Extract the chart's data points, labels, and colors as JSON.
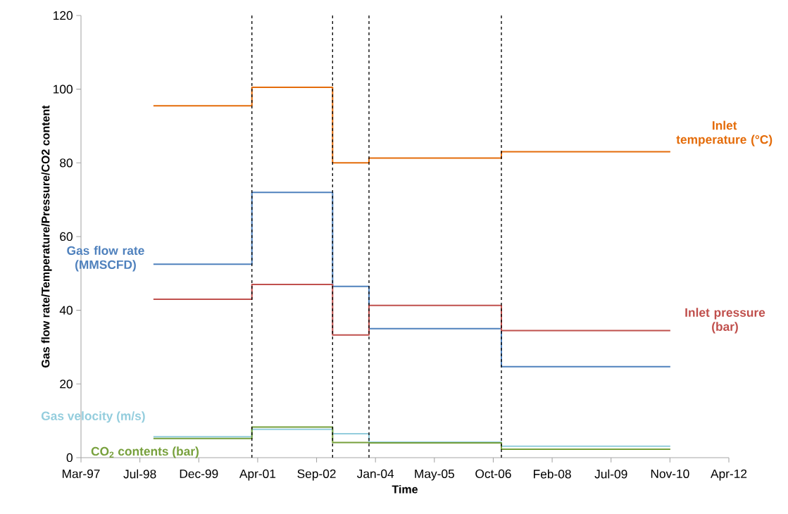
{
  "chart_data": {
    "type": "step",
    "xlabel": "Time",
    "ylabel": "Gas flow rate/Temperature/Pressure/CO2 content",
    "x": [
      "1998-11-16",
      "2001-03-01",
      "2003-01-15",
      "2003-11-20",
      "2006-12-18",
      "2010-11-21"
    ],
    "series": [
      {
        "name": "Inlet temperature (°C)",
        "color": "#e46c0a",
        "values": [
          95.5,
          100.5,
          80,
          81.3,
          83,
          83
        ]
      },
      {
        "name": "Gas flow rate (MMSCFD)",
        "color": "#4f81bd",
        "values": [
          52.5,
          72,
          46.5,
          35,
          24.7,
          24.7
        ]
      },
      {
        "name": "Inlet pressure (bar)",
        "color": "#c0504d",
        "values": [
          43,
          47,
          33.3,
          41.3,
          34.5,
          34.5
        ]
      },
      {
        "name": "Gas velocity (m/s)",
        "color": "#93cddd",
        "values": [
          5.7,
          7.7,
          6.5,
          4.2,
          3.1,
          3.1
        ]
      },
      {
        "name": "CO$_{2}$ contents (bar)",
        "color": "#77a03c",
        "values": [
          5.2,
          8.3,
          4.1,
          4.0,
          2.3,
          2.3
        ]
      }
    ],
    "ref_lines": [
      {
        "axis": "x",
        "value": "2001-03-01",
        "color": "#000000",
        "line_style": "dashed"
      },
      {
        "axis": "x",
        "value": "2003-01-15",
        "color": "#000000",
        "line_style": "dashed"
      },
      {
        "axis": "x",
        "value": "2003-11-20",
        "color": "#000000",
        "line_style": "dashed"
      },
      {
        "axis": "x",
        "value": "2006-12-18",
        "color": "#000000",
        "line_style": "dashed"
      }
    ],
    "xlim": [
      "1997-03-11",
      "2012-04-01"
    ],
    "xticks": [
      {
        "value": "1997-03-11",
        "label": "Mar-97"
      },
      {
        "value": "1998-07-24",
        "label": "Jul-98"
      },
      {
        "value": "1999-12-06",
        "label": "Dec-99"
      },
      {
        "value": "2001-04-19",
        "label": "Apr-01"
      },
      {
        "value": "2002-09-01",
        "label": "Sep-02"
      },
      {
        "value": "2004-01-14",
        "label": "Jan-04"
      },
      {
        "value": "2005-05-28",
        "label": "May-05"
      },
      {
        "value": "2006-10-10",
        "label": "Oct-06"
      },
      {
        "value": "2008-02-22",
        "label": "Feb-08"
      },
      {
        "value": "2009-07-06",
        "label": "Jul-09"
      },
      {
        "value": "2010-11-18",
        "label": "Nov-10"
      },
      {
        "value": "2012-04-01",
        "label": "Apr-12"
      }
    ],
    "ylim": [
      0,
      120
    ],
    "yticks": [
      0,
      20,
      40,
      60,
      80,
      100,
      120
    ]
  }
}
